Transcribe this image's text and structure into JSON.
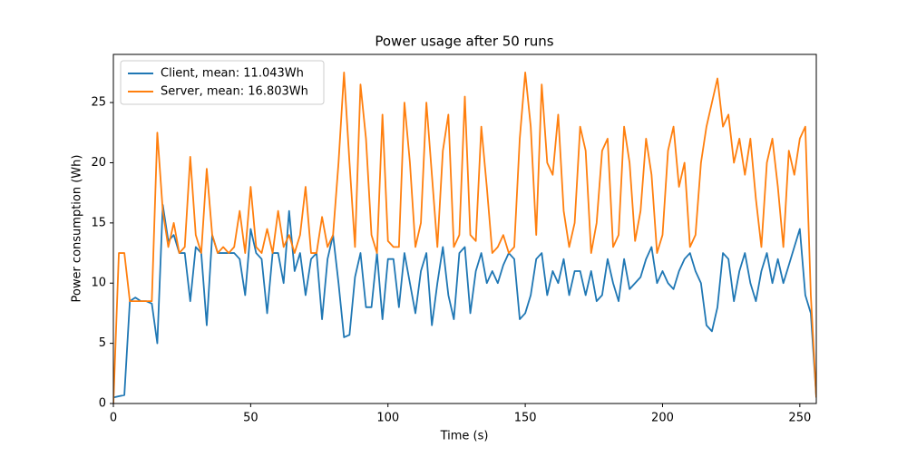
{
  "chart_data": {
    "type": "line",
    "title": "Power usage after 50 runs",
    "x_label": "Time (s)",
    "y_label": "Power consumption (Wh)",
    "xlim": [
      0,
      256
    ],
    "ylim": [
      0,
      29
    ],
    "xticks": [
      0,
      50,
      100,
      150,
      200,
      250
    ],
    "yticks": [
      0,
      5,
      10,
      15,
      20,
      25
    ],
    "legend": "upper left",
    "grid": false,
    "x": [
      0,
      2,
      4,
      6,
      8,
      10,
      12,
      14,
      16,
      18,
      20,
      22,
      24,
      26,
      28,
      30,
      32,
      34,
      36,
      38,
      40,
      42,
      44,
      46,
      48,
      50,
      52,
      54,
      56,
      58,
      60,
      62,
      64,
      66,
      68,
      70,
      72,
      74,
      76,
      78,
      80,
      82,
      84,
      86,
      88,
      90,
      92,
      94,
      96,
      98,
      100,
      102,
      104,
      106,
      108,
      110,
      112,
      114,
      116,
      118,
      120,
      122,
      124,
      126,
      128,
      130,
      132,
      134,
      136,
      138,
      140,
      142,
      144,
      146,
      148,
      150,
      152,
      154,
      156,
      158,
      160,
      162,
      164,
      166,
      168,
      170,
      172,
      174,
      176,
      178,
      180,
      182,
      184,
      186,
      188,
      190,
      192,
      194,
      196,
      198,
      200,
      202,
      204,
      206,
      208,
      210,
      212,
      214,
      216,
      218,
      220,
      222,
      224,
      226,
      228,
      230,
      232,
      234,
      236,
      238,
      240,
      242,
      244,
      246,
      248,
      250,
      252,
      254,
      256
    ],
    "series": [
      {
        "name": "Client, mean: 11.043Wh",
        "color": "#1f77b4",
        "values": [
          0.5,
          0.6,
          0.7,
          8.5,
          8.8,
          8.5,
          8.5,
          8.3,
          5,
          16.5,
          13.5,
          14,
          12.5,
          12.5,
          8.5,
          13,
          12.5,
          6.5,
          14,
          12.5,
          12.5,
          12.5,
          12.5,
          12,
          9,
          14.5,
          12.5,
          12,
          7.5,
          12.5,
          12.5,
          10,
          16,
          11,
          12.5,
          9,
          12,
          12.5,
          7,
          12,
          14,
          10,
          5.5,
          5.7,
          10.5,
          12.5,
          8,
          8,
          12.5,
          7,
          12,
          12,
          8,
          12.5,
          10,
          7.5,
          11,
          12.5,
          6.5,
          10,
          13,
          9,
          7,
          12.5,
          13,
          7.5,
          11,
          12.5,
          10,
          11,
          10,
          11.5,
          12.5,
          12,
          7,
          7.5,
          9,
          12,
          12.5,
          9,
          11,
          10,
          12,
          9,
          11,
          11,
          9,
          11,
          8.5,
          9,
          12,
          10,
          8.5,
          12,
          9.5,
          10,
          10.5,
          12,
          13,
          10,
          11,
          10,
          9.5,
          11,
          12,
          12.5,
          11,
          10,
          6.5,
          6,
          8,
          12.5,
          12,
          8.5,
          11,
          12.5,
          10,
          8.5,
          11,
          12.5,
          10,
          12,
          10,
          11.5,
          13,
          14.5,
          9,
          7.5,
          0.5
        ]
      },
      {
        "name": "Server, mean: 16.803Wh",
        "color": "#ff7f0e",
        "values": [
          0,
          12.5,
          12.5,
          8.5,
          8.5,
          8.5,
          8.5,
          8.5,
          22.5,
          16,
          13,
          15,
          12.5,
          13,
          20.5,
          14,
          12.5,
          19.5,
          14,
          12.5,
          13,
          12.5,
          13,
          16,
          12.5,
          18,
          13,
          12.5,
          14.5,
          12.5,
          16,
          13,
          14,
          12.5,
          14,
          18,
          12.5,
          12.5,
          15.5,
          13,
          14,
          20,
          27.5,
          20,
          13,
          26.5,
          22,
          14,
          12.5,
          24,
          13.5,
          13,
          13,
          25,
          20,
          13,
          15,
          25,
          19,
          13,
          21,
          24,
          13,
          14,
          25.5,
          14,
          13.5,
          23,
          18,
          12.5,
          13,
          14,
          12.5,
          13,
          22,
          27.5,
          23,
          14,
          26.5,
          20,
          19,
          24,
          16,
          13,
          15,
          23,
          21,
          12.5,
          15,
          21,
          22,
          13,
          14,
          23,
          20,
          13.5,
          16,
          22,
          19,
          12.5,
          14,
          21,
          23,
          18,
          20,
          13,
          14,
          20,
          23,
          25,
          27,
          23,
          24,
          20,
          22,
          19,
          22,
          17,
          13,
          20,
          22,
          18,
          13,
          21,
          19,
          22,
          23,
          9,
          0.5
        ]
      }
    ]
  }
}
